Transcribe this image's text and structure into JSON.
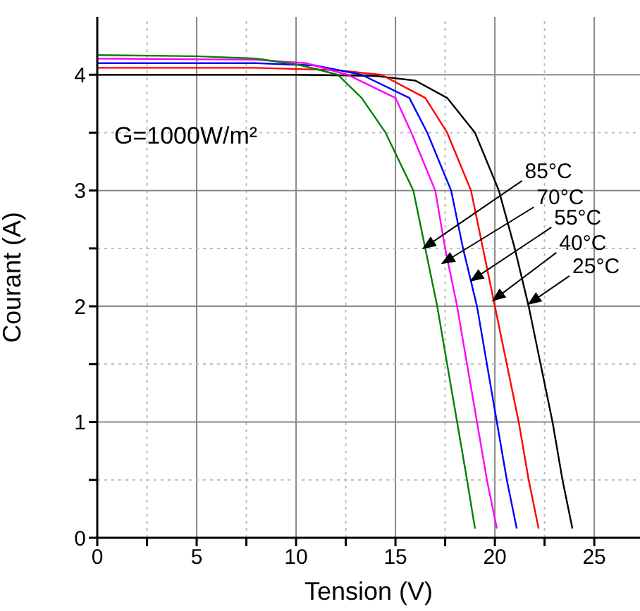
{
  "chart_data": {
    "type": "line",
    "xlabel": "Tension (V)",
    "ylabel": "Courant (A)",
    "xlim": [
      0,
      27.3
    ],
    "ylim": [
      0,
      4.5
    ],
    "xticks": [
      0,
      {
        "value": 2.5,
        "label": null
      },
      5,
      {
        "value": 7.5,
        "label": null
      },
      10,
      {
        "value": 12.5,
        "label": null
      },
      15,
      {
        "value": 17.5,
        "label": null
      },
      20,
      {
        "value": 22.5,
        "label": null
      },
      25
    ],
    "yticks": [
      0,
      {
        "value": 0.5,
        "label": null
      },
      1,
      {
        "value": 1.5,
        "label": null
      },
      2,
      {
        "value": 2.5,
        "label": null
      },
      3,
      {
        "value": 3.5,
        "label": null
      },
      4
    ],
    "grid": true,
    "marker": "none",
    "line_style": "solid",
    "series": [
      {
        "color": "#000000",
        "x": [
          0,
          10,
          14,
          16,
          17.6,
          19,
          20.2,
          21,
          21.7,
          22.3,
          22.9,
          23.4,
          23.9
        ],
        "values": [
          4.0,
          4.0,
          3.99,
          3.95,
          3.8,
          3.5,
          3.0,
          2.5,
          2.0,
          1.5,
          1.0,
          0.5,
          0.08
        ]
      },
      {
        "color": "#ff0000",
        "x": [
          0,
          8,
          12,
          14.3,
          16.5,
          17.6,
          18.8,
          19.4,
          20.0,
          20.6,
          21.2,
          21.7,
          22.2
        ],
        "values": [
          4.06,
          4.06,
          4.04,
          4.0,
          3.8,
          3.5,
          3.0,
          2.5,
          2.0,
          1.5,
          1.0,
          0.5,
          0.08
        ]
      },
      {
        "color": "#0000ff",
        "x": [
          0,
          8,
          11,
          13.3,
          15.7,
          16.6,
          17.8,
          18.4,
          19.1,
          19.6,
          20.1,
          20.6,
          21.1
        ],
        "values": [
          4.1,
          4.1,
          4.08,
          4.0,
          3.8,
          3.5,
          3.0,
          2.5,
          2.0,
          1.5,
          1.0,
          0.5,
          0.08
        ]
      },
      {
        "color": "#ff00ff",
        "x": [
          0,
          8,
          10.5,
          12.6,
          15.0,
          15.8,
          17.0,
          17.5,
          18.1,
          18.6,
          19.1,
          19.6,
          20.1
        ],
        "values": [
          4.14,
          4.13,
          4.1,
          4.0,
          3.8,
          3.5,
          3.0,
          2.5,
          2.0,
          1.5,
          1.0,
          0.5,
          0.08
        ]
      },
      {
        "color": "#008000",
        "x": [
          0,
          5,
          8,
          10,
          11,
          12.1,
          13.3,
          14.5,
          15.9,
          16.5,
          17.1,
          17.6,
          18.1,
          18.6,
          19.0
        ],
        "values": [
          4.17,
          4.16,
          4.14,
          4.09,
          4.05,
          4.0,
          3.8,
          3.5,
          3.0,
          2.5,
          2.0,
          1.5,
          1.0,
          0.5,
          0.08
        ]
      }
    ],
    "annotations": [
      "G=1000W/m²",
      {
        "text": "85°C",
        "x": 16.4,
        "y": 2.5
      },
      {
        "text": "70°C",
        "x": 17.35,
        "y": 2.37
      },
      {
        "text": "55°C",
        "x": 18.8,
        "y": 2.22
      },
      {
        "text": "40°C",
        "x": 19.9,
        "y": 2.05
      },
      {
        "text": "25°C",
        "x": 21.7,
        "y": 2.02
      }
    ]
  }
}
